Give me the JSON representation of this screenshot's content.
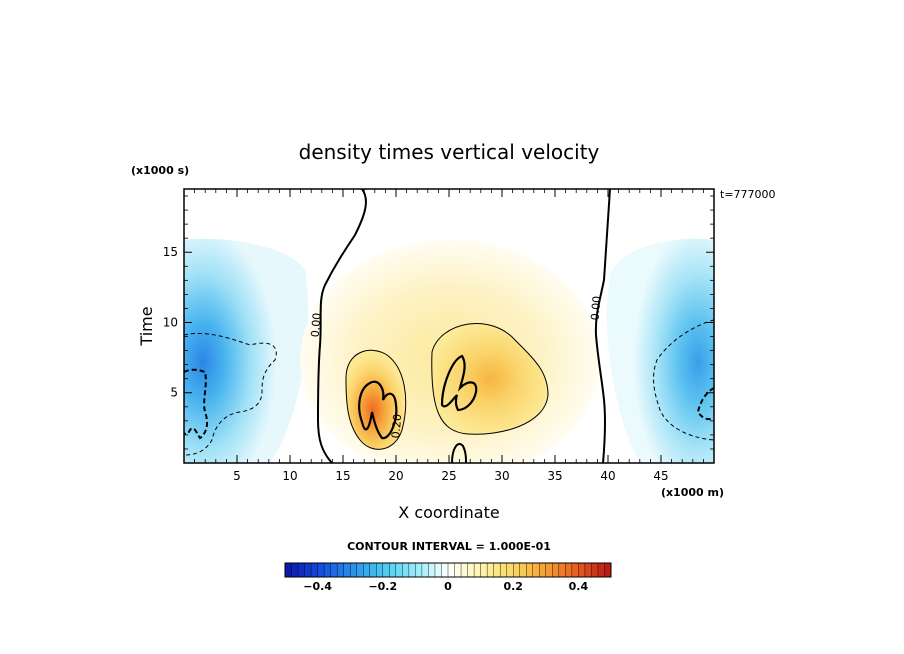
{
  "chart_data": {
    "type": "heatmap",
    "title": "density times vertical velocity",
    "xlabel": "X coordinate",
    "ylabel": "Time",
    "x_scale_label": "(x1000 m)",
    "y_scale_label": "(x1000 s)",
    "time_label": "t=777000",
    "contour_interval_label": "CONTOUR INTERVAL = 1.000E-01",
    "xlim": [
      0,
      50
    ],
    "ylim": [
      0,
      19.5
    ],
    "xticks": [
      5,
      10,
      15,
      20,
      25,
      30,
      35,
      40,
      45
    ],
    "yticks": [
      5,
      10,
      15
    ],
    "contour_labels": [
      {
        "text": "0.00",
        "x": 12.8,
        "y": 9.8
      },
      {
        "text": "0.00",
        "x": 39.2,
        "y": 11.0
      },
      {
        "text": "0.20",
        "x": 20.4,
        "y": 2.6
      }
    ],
    "colorbar": {
      "min": -0.5,
      "max": 0.5,
      "tick_values": [
        -0.4,
        -0.2,
        0,
        0.2,
        0.4
      ],
      "tick_labels": [
        "−0.4",
        "−0.2",
        "0",
        "0.2",
        "0.4"
      ]
    },
    "features": [
      {
        "name": "positive-core-left",
        "x": 18.5,
        "y": 3.5,
        "value": 0.35
      },
      {
        "name": "positive-core-right",
        "x": 27,
        "y": 6,
        "value": 0.25
      },
      {
        "name": "negative-core-left",
        "x": 1.5,
        "y": 5,
        "value": -0.3
      },
      {
        "name": "negative-core-right",
        "x": 49,
        "y": 5,
        "value": -0.25
      }
    ]
  }
}
